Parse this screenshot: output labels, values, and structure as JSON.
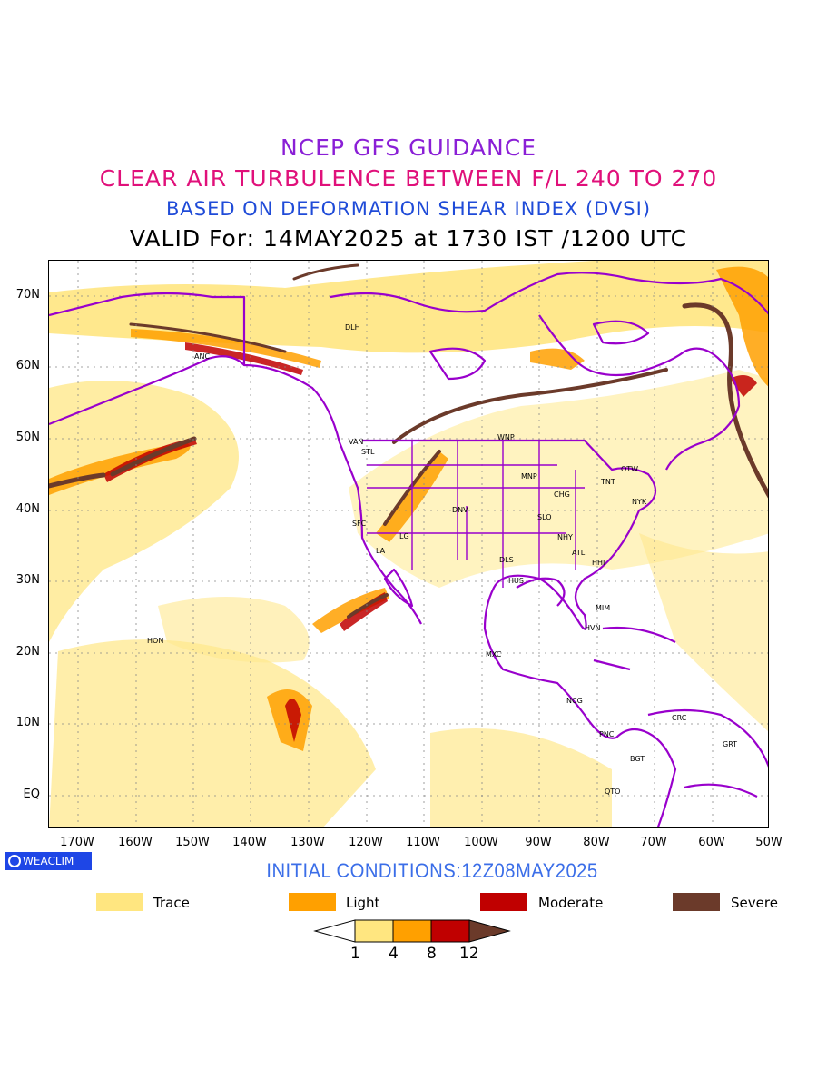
{
  "titles": {
    "line1": "NCEP GFS GUIDANCE",
    "line2": "CLEAR AIR TURBULENCE BETWEEN F/L 240 TO 270",
    "line3": "BASED ON DEFORMATION SHEAR INDEX (DVSI)",
    "line4": "VALID For: 14MAY2025 at 1730 IST /1200 UTC"
  },
  "colors": {
    "title1": "#8a1fd6",
    "title2": "#e0107a",
    "title3": "#1f4bd8",
    "trace": "#ffe680",
    "light": "#ffa000",
    "moderate": "#c00000",
    "severe": "#6b3a2a",
    "coast": "#9900cc",
    "initial": "#3b6ee8",
    "logo_bg": "#1e46e6"
  },
  "axes": {
    "lat_labels": [
      "70N",
      "60N",
      "50N",
      "40N",
      "30N",
      "20N",
      "10N",
      "EQ"
    ],
    "lon_labels": [
      "170W",
      "160W",
      "150W",
      "140W",
      "130W",
      "120W",
      "110W",
      "100W",
      "90W",
      "80W",
      "70W",
      "60W",
      "50W"
    ]
  },
  "cities": [
    "ANC",
    "DLH",
    "VAN",
    "STL",
    "WNP",
    "MNP",
    "OTW",
    "TNT",
    "CHG",
    "NYK",
    "DNV",
    "SFC",
    "LG",
    "SLO",
    "NHY",
    "LA",
    "ATL",
    "DLS",
    "HHI",
    "HUS",
    "MIM",
    "HVN",
    "HON",
    "MXC",
    "NCG",
    "PNC",
    "CRC",
    "BGT",
    "GRT",
    "QTO"
  ],
  "logo": "WEACLIM",
  "initial_conditions": "INITIAL CONDITIONS:12Z08MAY2025",
  "legend": [
    {
      "label": "Trace",
      "color": "#ffe680"
    },
    {
      "label": "Light",
      "color": "#ffa000"
    },
    {
      "label": "Moderate",
      "color": "#c00000"
    },
    {
      "label": "Severe",
      "color": "#6b3a2a"
    }
  ],
  "colorbar_labels": [
    "1",
    "4",
    "8",
    "12"
  ]
}
